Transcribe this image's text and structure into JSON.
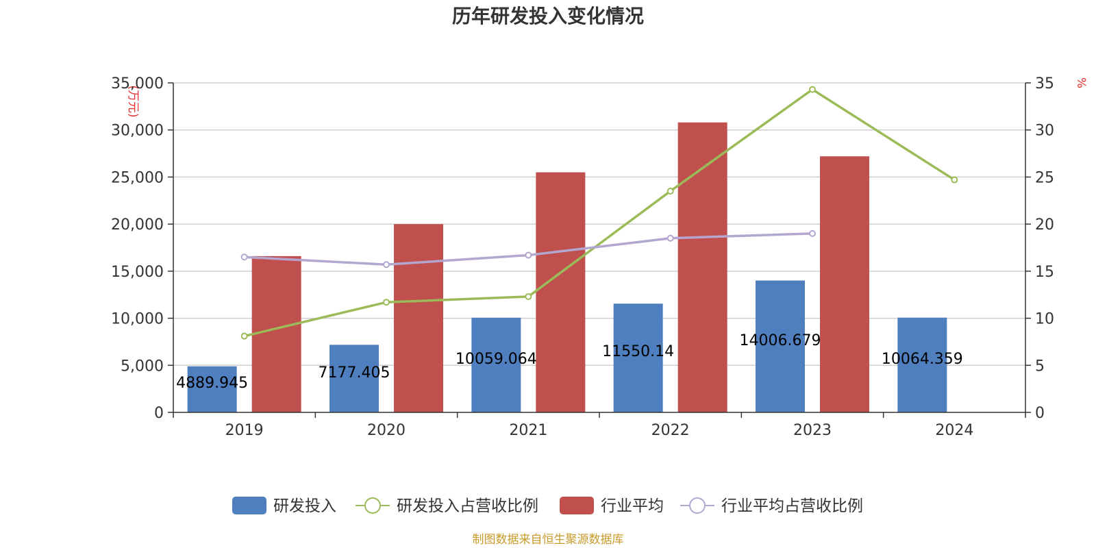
{
  "chart_data": {
    "type": "bar",
    "title": "历年研发投入变化情况",
    "categories": [
      "2019",
      "2020",
      "2021",
      "2022",
      "2023",
      "2024"
    ],
    "y_left": {
      "unit": "(万元)",
      "ylim": [
        0,
        35000
      ],
      "ticks": [
        "0",
        "5,000",
        "10,000",
        "15,000",
        "20,000",
        "25,000",
        "30,000",
        "35,000"
      ]
    },
    "y_right": {
      "unit": "%",
      "ylim": [
        0,
        35
      ],
      "ticks": [
        "0",
        "5",
        "10",
        "15",
        "20",
        "25",
        "30",
        "35"
      ]
    },
    "grid": true,
    "legend_position": "bottom",
    "series": [
      {
        "name": "研发投入",
        "kind": "bar",
        "axis": "left",
        "color": "#4f7fbf",
        "values": [
          4889.945,
          7177.405,
          10059.064,
          11550.14,
          14006.679,
          10064.359
        ],
        "labels": [
          "4889.945",
          "7177.405",
          "10059.064",
          "11550.14",
          "14006.679",
          "10064.359"
        ]
      },
      {
        "name": "研发投入占营收比例",
        "kind": "line",
        "axis": "right",
        "color": "#9bbb59",
        "values": [
          8.1,
          11.7,
          12.3,
          23.5,
          34.3,
          24.7
        ]
      },
      {
        "name": "行业平均",
        "kind": "bar",
        "axis": "left",
        "color": "#c0504d",
        "values": [
          16600,
          20000,
          25500,
          30800,
          27200,
          null
        ]
      },
      {
        "name": "行业平均占营收比例",
        "kind": "line",
        "axis": "right",
        "color": "#b3a6cf",
        "values": [
          16.5,
          15.7,
          16.7,
          18.5,
          19.0,
          null
        ]
      }
    ],
    "source": "制图数据来自恒生聚源数据库"
  }
}
